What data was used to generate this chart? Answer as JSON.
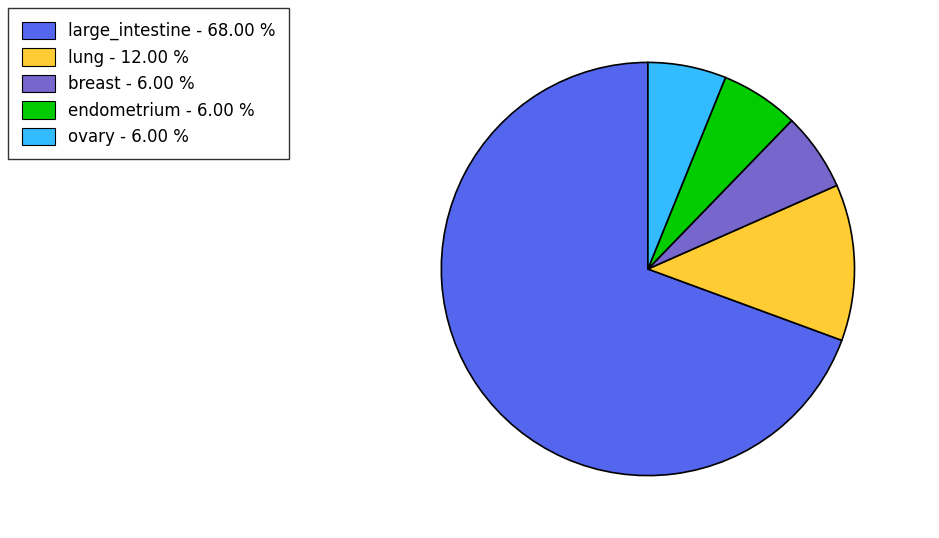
{
  "labels": [
    "large_intestine",
    "lung",
    "breast",
    "endometrium",
    "ovary"
  ],
  "values": [
    68.0,
    12.0,
    6.0,
    6.0,
    6.0
  ],
  "colors": [
    "#5566dd",
    "#ffcc33",
    "#5566dd",
    "#00cc00",
    "#33bbff"
  ],
  "legend_colors": [
    "#5566dd",
    "#ffcc33",
    "#6655cc",
    "#00cc00",
    "#33bbff"
  ],
  "legend_labels": [
    "large_intestine - 68.00 %",
    "lung - 12.00 %",
    "breast - 6.00 %",
    "endometrium - 6.00 %",
    "ovary - 6.00 %"
  ],
  "startangle": 90,
  "background_color": "#ffffff",
  "legend_fontsize": 12
}
